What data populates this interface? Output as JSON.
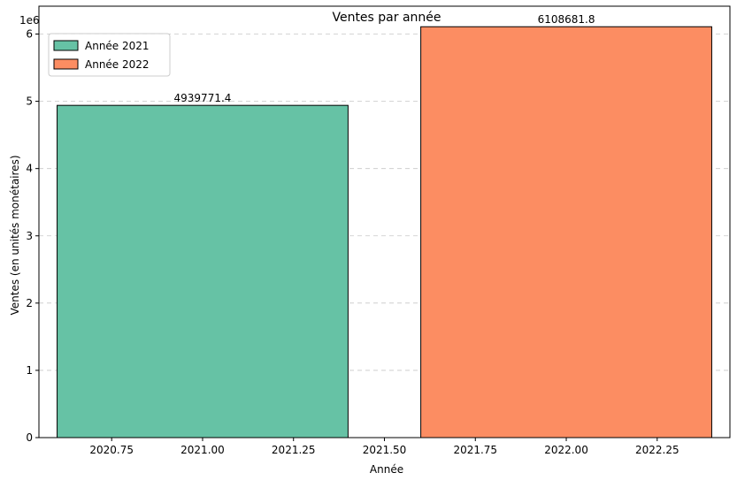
{
  "chart_data": {
    "type": "bar",
    "title": "Ventes par année",
    "xlabel": "Année",
    "ylabel": "Ventes (en unités monétaires)",
    "y_offset_label": "1e6",
    "y_scale": 1000000,
    "xlim": [
      2020.55,
      2022.45
    ],
    "ylim": [
      0,
      6414115.9
    ],
    "x_ticks": [
      2020.75,
      2021.0,
      2021.25,
      2021.5,
      2021.75,
      2022.0,
      2022.25
    ],
    "x_tick_labels": [
      "2020.75",
      "2021.00",
      "2021.25",
      "2021.50",
      "2021.75",
      "2022.00",
      "2022.25"
    ],
    "y_ticks": [
      0,
      1000000,
      2000000,
      3000000,
      4000000,
      5000000,
      6000000
    ],
    "y_tick_labels": [
      "0",
      "1",
      "2",
      "3",
      "4",
      "5",
      "6"
    ],
    "grid": "y dashed",
    "legend_position": "top-left",
    "bar_width": 0.8,
    "series": [
      {
        "name": "Année 2021",
        "x": 2021,
        "value": 4939771.4,
        "label": "4939771.4",
        "color": "#66c2a5"
      },
      {
        "name": "Année 2022",
        "x": 2022,
        "value": 6108681.8,
        "label": "6108681.8",
        "color": "#fc8d62"
      }
    ]
  }
}
